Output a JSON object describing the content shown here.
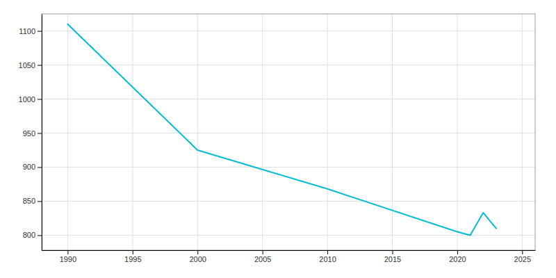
{
  "chart_data": {
    "type": "line",
    "x": [
      1990,
      2000,
      2010,
      2020,
      2021,
      2022,
      2023
    ],
    "values": [
      1110,
      925,
      868,
      805,
      800,
      833,
      810
    ],
    "color": "#00bcd4",
    "xlim": [
      1988,
      2026
    ],
    "ylim": [
      778,
      1125
    ],
    "xticks": [
      1990,
      1995,
      2000,
      2005,
      2010,
      2015,
      2020,
      2025
    ],
    "yticks": [
      800,
      850,
      900,
      950,
      1000,
      1050,
      1100
    ],
    "grid": true
  }
}
